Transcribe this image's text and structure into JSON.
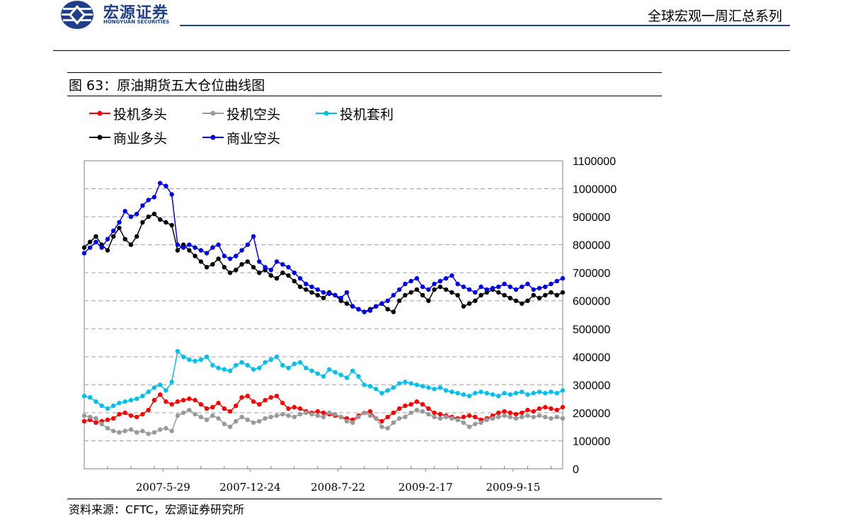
{
  "header": {
    "brand_cn": "宏源证券",
    "brand_en": "HONGYUAN SECURITIES",
    "report_series": "全球宏观一周汇总系列",
    "brand_color": "#1f3f8a"
  },
  "figure": {
    "title": "图 63：原油期货五大仓位曲线图",
    "source": "资料来源：CFTC，宏源证券研究所"
  },
  "chart_data": {
    "type": "line",
    "title": "",
    "xlabel": "",
    "ylabel": "",
    "ylim": [
      0,
      1100000
    ],
    "y_ticks": [
      "0",
      "100000",
      "200000",
      "300000",
      "400000",
      "500000",
      "600000",
      "700000",
      "800000",
      "900000",
      "1000000",
      "1100000"
    ],
    "y_tick_values": [
      0,
      100000,
      200000,
      300000,
      400000,
      500000,
      600000,
      700000,
      800000,
      900000,
      1000000,
      1100000
    ],
    "y_axis_side": "right",
    "x_range": [
      "2006-11-21",
      "2010-01-12"
    ],
    "x_ticks": [
      {
        "date": "2007-05-29",
        "label": "2007-5-29"
      },
      {
        "date": "2007-12-24",
        "label": "2007-12-24"
      },
      {
        "date": "2008-07-22",
        "label": "2008-7-22"
      },
      {
        "date": "2009-02-17",
        "label": "2009-2-17"
      },
      {
        "date": "2009-09-15",
        "label": "2009-9-15"
      }
    ],
    "grid": "horizontal dashed",
    "legend_placement": "top-left",
    "x_dates": [
      "2006-11-21",
      "2006-12-05",
      "2006-12-19",
      "2007-01-02",
      "2007-01-16",
      "2007-01-30",
      "2007-02-13",
      "2007-02-27",
      "2007-03-13",
      "2007-03-27",
      "2007-04-10",
      "2007-04-24",
      "2007-05-08",
      "2007-05-22",
      "2007-06-05",
      "2007-06-19",
      "2007-07-03",
      "2007-07-17",
      "2007-07-31",
      "2007-08-14",
      "2007-08-28",
      "2007-09-11",
      "2007-09-25",
      "2007-10-09",
      "2007-10-23",
      "2007-11-06",
      "2007-11-20",
      "2007-12-04",
      "2007-12-18",
      "2008-01-01",
      "2008-01-15",
      "2008-01-29",
      "2008-02-12",
      "2008-02-26",
      "2008-03-11",
      "2008-03-25",
      "2008-04-08",
      "2008-04-22",
      "2008-05-06",
      "2008-05-20",
      "2008-06-03",
      "2008-06-17",
      "2008-07-01",
      "2008-07-15",
      "2008-07-29",
      "2008-08-12",
      "2008-08-26",
      "2008-09-09",
      "2008-09-23",
      "2008-10-07",
      "2008-10-21",
      "2008-11-04",
      "2008-11-18",
      "2008-12-02",
      "2008-12-16",
      "2008-12-30",
      "2009-01-13",
      "2009-01-27",
      "2009-02-10",
      "2009-02-24",
      "2009-03-10",
      "2009-03-24",
      "2009-04-07",
      "2009-04-21",
      "2009-05-05",
      "2009-05-19",
      "2009-06-02",
      "2009-06-16",
      "2009-06-30",
      "2009-07-14",
      "2009-07-28",
      "2009-08-11",
      "2009-08-25",
      "2009-09-08",
      "2009-09-22",
      "2009-10-06",
      "2009-10-20",
      "2009-11-03",
      "2009-11-17",
      "2009-12-01",
      "2009-12-15",
      "2009-12-29",
      "2010-01-12"
    ],
    "series": [
      {
        "name": "投机多头",
        "color": "#ff0000",
        "values": [
          170000,
          175000,
          165000,
          170000,
          175000,
          180000,
          195000,
          200000,
          190000,
          185000,
          195000,
          210000,
          245000,
          265000,
          240000,
          230000,
          240000,
          245000,
          250000,
          245000,
          230000,
          215000,
          220000,
          235000,
          215000,
          205000,
          225000,
          255000,
          260000,
          240000,
          230000,
          245000,
          255000,
          260000,
          235000,
          215000,
          220000,
          215000,
          205000,
          200000,
          205000,
          200000,
          195000,
          190000,
          185000,
          180000,
          175000,
          190000,
          200000,
          205000,
          180000,
          170000,
          185000,
          200000,
          215000,
          225000,
          230000,
          240000,
          230000,
          215000,
          200000,
          195000,
          190000,
          185000,
          180000,
          185000,
          190000,
          185000,
          175000,
          180000,
          190000,
          200000,
          205000,
          200000,
          195000,
          200000,
          210000,
          205000,
          215000,
          220000,
          215000,
          210000,
          220000
        ]
      },
      {
        "name": "投机空头",
        "color": "#999999",
        "values": [
          190000,
          185000,
          180000,
          160000,
          145000,
          135000,
          130000,
          135000,
          140000,
          130000,
          135000,
          125000,
          130000,
          140000,
          145000,
          135000,
          190000,
          200000,
          210000,
          195000,
          185000,
          175000,
          190000,
          180000,
          160000,
          150000,
          170000,
          185000,
          175000,
          165000,
          170000,
          180000,
          185000,
          190000,
          195000,
          190000,
          185000,
          195000,
          200000,
          195000,
          190000,
          185000,
          200000,
          195000,
          185000,
          170000,
          165000,
          185000,
          200000,
          190000,
          180000,
          150000,
          145000,
          165000,
          180000,
          185000,
          200000,
          210000,
          205000,
          195000,
          185000,
          180000,
          185000,
          180000,
          175000,
          165000,
          150000,
          160000,
          165000,
          175000,
          180000,
          185000,
          190000,
          185000,
          180000,
          185000,
          190000,
          185000,
          190000,
          185000,
          180000,
          185000,
          180000
        ]
      },
      {
        "name": "投机套利",
        "color": "#00c0f0",
        "values": [
          260000,
          255000,
          240000,
          225000,
          215000,
          225000,
          235000,
          240000,
          245000,
          250000,
          260000,
          275000,
          290000,
          300000,
          280000,
          310000,
          420000,
          400000,
          390000,
          385000,
          390000,
          400000,
          370000,
          360000,
          355000,
          350000,
          370000,
          380000,
          370000,
          355000,
          360000,
          380000,
          390000,
          400000,
          370000,
          360000,
          375000,
          380000,
          360000,
          350000,
          340000,
          330000,
          355000,
          345000,
          335000,
          325000,
          350000,
          330000,
          300000,
          295000,
          285000,
          270000,
          280000,
          290000,
          305000,
          310000,
          305000,
          300000,
          295000,
          290000,
          285000,
          290000,
          280000,
          275000,
          270000,
          265000,
          260000,
          270000,
          275000,
          270000,
          265000,
          260000,
          270000,
          265000,
          270000,
          275000,
          265000,
          270000,
          275000,
          270000,
          275000,
          270000,
          280000
        ]
      },
      {
        "name": "商业多头",
        "color": "#000000",
        "values": [
          790000,
          810000,
          830000,
          800000,
          780000,
          830000,
          860000,
          820000,
          800000,
          830000,
          880000,
          900000,
          910000,
          890000,
          880000,
          870000,
          780000,
          800000,
          780000,
          760000,
          740000,
          720000,
          730000,
          750000,
          720000,
          700000,
          710000,
          730000,
          740000,
          720000,
          700000,
          710000,
          690000,
          680000,
          700000,
          690000,
          670000,
          650000,
          640000,
          630000,
          620000,
          610000,
          630000,
          620000,
          600000,
          590000,
          580000,
          570000,
          560000,
          570000,
          580000,
          590000,
          570000,
          560000,
          600000,
          620000,
          630000,
          640000,
          620000,
          600000,
          640000,
          650000,
          640000,
          630000,
          620000,
          580000,
          590000,
          600000,
          620000,
          630000,
          640000,
          630000,
          620000,
          610000,
          600000,
          590000,
          600000,
          620000,
          610000,
          620000,
          630000,
          620000,
          630000
        ]
      },
      {
        "name": "商业空头",
        "color": "#0000ee",
        "values": [
          770000,
          790000,
          810000,
          790000,
          820000,
          850000,
          880000,
          920000,
          900000,
          910000,
          940000,
          960000,
          970000,
          1020000,
          1010000,
          980000,
          800000,
          790000,
          800000,
          790000,
          780000,
          770000,
          790000,
          800000,
          760000,
          750000,
          760000,
          780000,
          800000,
          830000,
          740000,
          720000,
          710000,
          740000,
          730000,
          720000,
          700000,
          680000,
          660000,
          650000,
          640000,
          630000,
          625000,
          620000,
          610000,
          630000,
          580000,
          570000,
          560000,
          565000,
          580000,
          590000,
          600000,
          620000,
          640000,
          660000,
          670000,
          680000,
          650000,
          640000,
          660000,
          670000,
          680000,
          690000,
          660000,
          650000,
          640000,
          630000,
          650000,
          640000,
          645000,
          650000,
          660000,
          650000,
          640000,
          650000,
          660000,
          640000,
          645000,
          650000,
          660000,
          670000,
          680000
        ]
      }
    ]
  }
}
